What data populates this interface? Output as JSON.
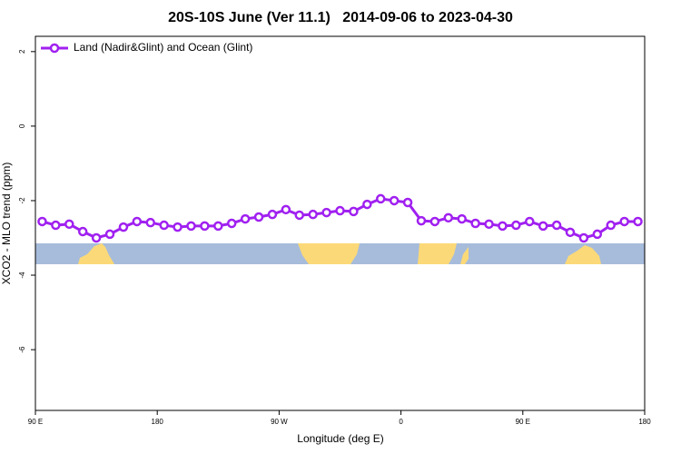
{
  "chart_data": {
    "type": "line",
    "title": "20S-10S June (Ver 11.1)   2014-09-06 to 2023-04-30",
    "x_label": "Longitude (deg E)",
    "y_label": "XCO2 - MLO trend (ppm)",
    "x": [
      95,
      105,
      115,
      125,
      135,
      145,
      155,
      165,
      175,
      185,
      195,
      205,
      215,
      225,
      235,
      245,
      255,
      265,
      275,
      285,
      295,
      305,
      315,
      325,
      335,
      345,
      355,
      365,
      375,
      385,
      395,
      405,
      415,
      425,
      435,
      445,
      455,
      465,
      475,
      485,
      495,
      505,
      515,
      525,
      535
    ],
    "series": [
      {
        "name": "Land (Nadir&Glint) and Ocean (Glint)",
        "color": "#a020f0",
        "values": [
          -2.56,
          -2.66,
          -2.63,
          -2.83,
          -3.0,
          -2.9,
          -2.71,
          -2.56,
          -2.59,
          -2.66,
          -2.71,
          -2.68,
          -2.68,
          -2.68,
          -2.61,
          -2.49,
          -2.44,
          -2.37,
          -2.24,
          -2.39,
          -2.37,
          -2.32,
          -2.27,
          -2.29,
          -2.1,
          -1.95,
          -2.0,
          -2.05,
          -2.54,
          -2.56,
          -2.46,
          -2.49,
          -2.61,
          -2.63,
          -2.68,
          -2.66,
          -2.56,
          -2.68,
          -2.66,
          -2.85,
          -3.0,
          -2.9,
          -2.66,
          -2.56,
          -2.56
        ]
      }
    ],
    "xlim": [
      90,
      540
    ],
    "xticks": [
      {
        "value": 90,
        "label": "90 E"
      },
      {
        "value": 180,
        "label": "180"
      },
      {
        "value": 270,
        "label": "90 W"
      },
      {
        "value": 360,
        "label": "0"
      },
      {
        "value": 450,
        "label": "90 E"
      },
      {
        "value": 540,
        "label": "180"
      }
    ],
    "ylim": [
      -7.63,
      2.41
    ],
    "yticks": [
      2,
      0,
      -2,
      -4,
      -6
    ],
    "legend": "top-left"
  }
}
